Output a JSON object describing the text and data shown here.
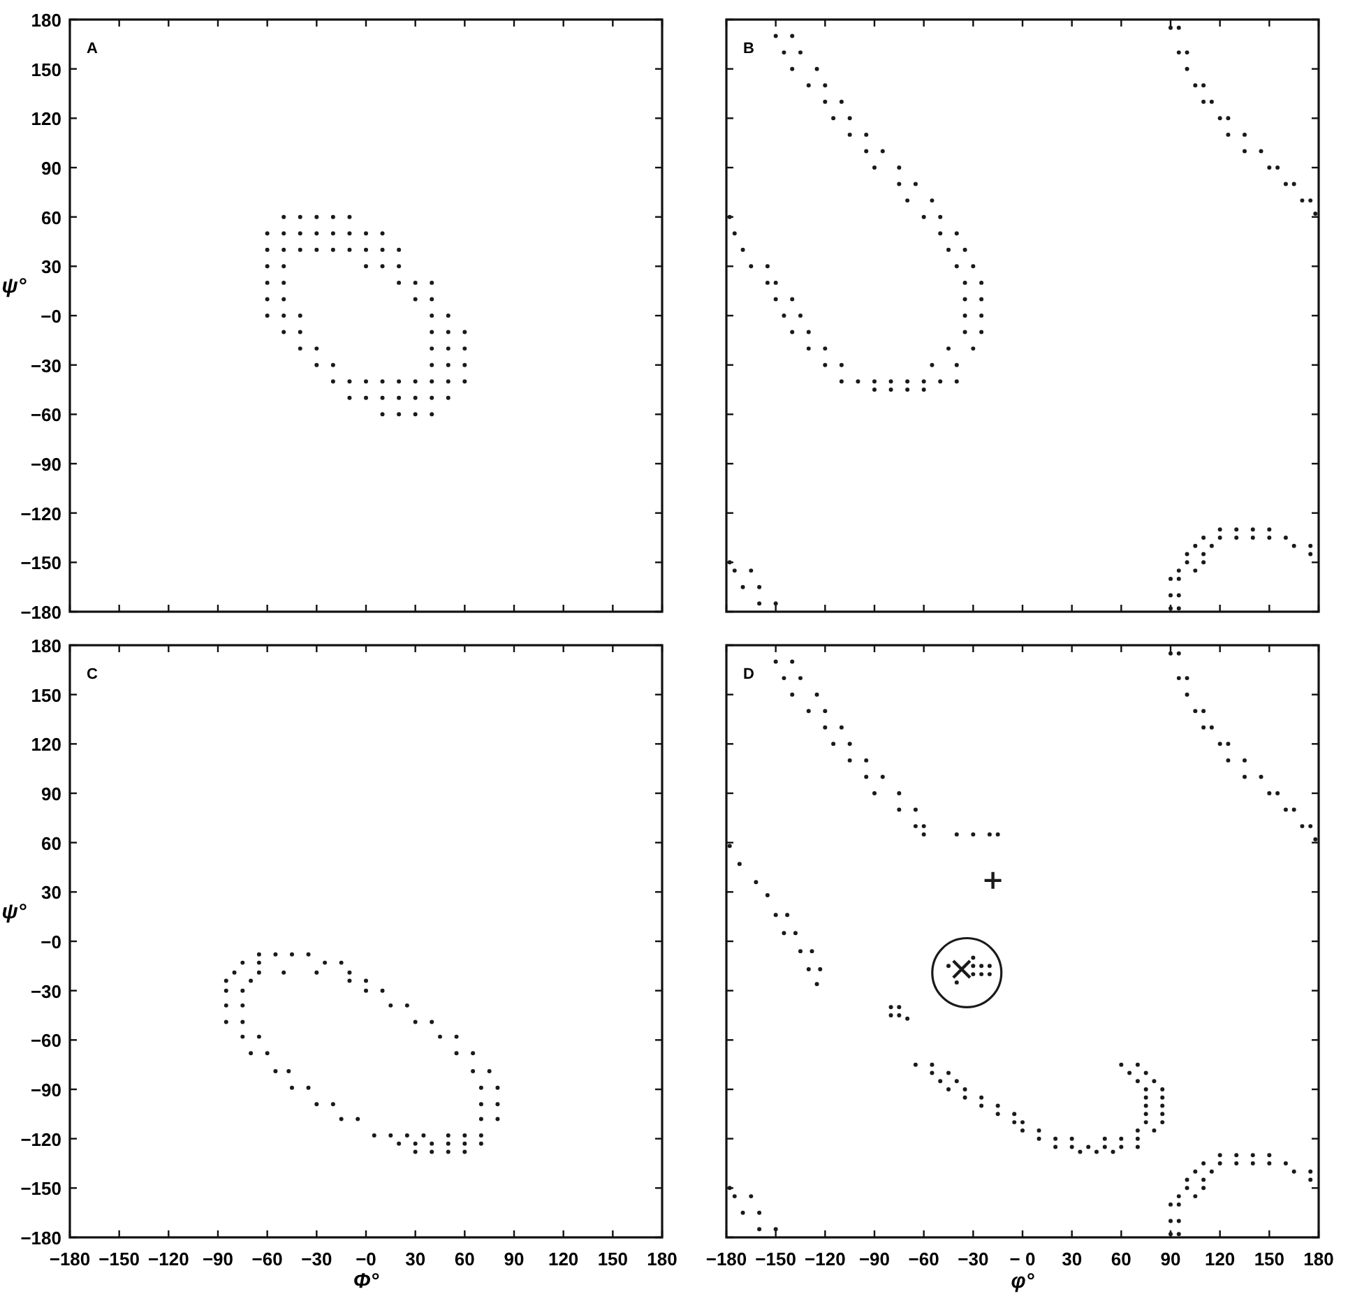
{
  "chart_data": [
    {
      "type": "scatter",
      "title": "A",
      "ylabel": "ψ°",
      "xlim": [
        -180,
        180
      ],
      "ylim": [
        -180,
        180
      ],
      "tick_labels": "y",
      "marker": "circle",
      "xticks": [
        -180,
        -150,
        -120,
        -90,
        -60,
        -30,
        0,
        30,
        60,
        90,
        120,
        150,
        180
      ],
      "yticks": [
        -180,
        -150,
        -120,
        -90,
        -60,
        -30,
        {
          "value": 0,
          "label": "−0"
        },
        30,
        60,
        90,
        120,
        150,
        180
      ],
      "series": [
        {
          "color": "#1a1a1a",
          "x": [
            -50,
            -40,
            -30,
            -20,
            -10,
            -60,
            -50,
            -40,
            -30,
            -20,
            -10,
            0,
            10,
            -60,
            -50,
            -40,
            -30,
            -20,
            -10,
            0,
            10,
            20,
            -60,
            -50,
            0,
            10,
            20,
            -60,
            -50,
            20,
            30,
            40,
            -60,
            -50,
            30,
            40,
            -60,
            -50,
            -40,
            40,
            50,
            -50,
            -40,
            40,
            50,
            60,
            -40,
            -30,
            40,
            50,
            60,
            -30,
            -20,
            40,
            50,
            60,
            -20,
            -10,
            0,
            10,
            20,
            30,
            40,
            50,
            60,
            -10,
            0,
            10,
            20,
            30,
            40,
            50,
            10,
            20,
            30,
            40
          ],
          "values": [
            60,
            60,
            60,
            60,
            60,
            50,
            50,
            50,
            50,
            50,
            50,
            50,
            50,
            40,
            40,
            40,
            40,
            40,
            40,
            40,
            40,
            40,
            30,
            30,
            30,
            30,
            30,
            20,
            20,
            20,
            20,
            20,
            10,
            10,
            10,
            10,
            0,
            0,
            0,
            0,
            0,
            -10,
            -10,
            -10,
            -10,
            -10,
            -20,
            -20,
            -20,
            -20,
            -20,
            -30,
            -30,
            -30,
            -30,
            -30,
            -40,
            -40,
            -40,
            -40,
            -40,
            -40,
            -40,
            -40,
            -40,
            -50,
            -50,
            -50,
            -50,
            -50,
            -50,
            -50,
            -60,
            -60,
            -60,
            -60
          ]
        }
      ]
    },
    {
      "type": "scatter",
      "title": "B",
      "xlim": [
        -180,
        180
      ],
      "ylim": [
        -180,
        180
      ],
      "tick_labels": false,
      "marker": "circle",
      "xticks": [
        -180,
        -150,
        -120,
        -90,
        -60,
        -30,
        0,
        30,
        60,
        90,
        120,
        150,
        180
      ],
      "yticks": [
        -180,
        -150,
        -120,
        -90,
        -60,
        -30,
        0,
        30,
        60,
        90,
        120,
        150,
        180
      ],
      "series": [
        {
          "color": "#1a1a1a",
          "x": [
            -150,
            -140,
            -145,
            -135,
            -140,
            -125,
            -130,
            -120,
            -120,
            -110,
            -115,
            -105,
            -105,
            -95,
            -95,
            -85,
            -90,
            -75,
            -75,
            -65,
            -70,
            -55,
            -60,
            -50,
            -50,
            -40,
            -45,
            -35,
            -40,
            -30,
            -35,
            -25,
            -35,
            -25,
            -35,
            -25,
            -35,
            -25,
            -45,
            -30,
            -55,
            -40,
            -120,
            -110,
            -110,
            -100,
            -90,
            -80,
            -70,
            -60,
            -50,
            -40,
            -90,
            -80,
            -70,
            -60,
            -178,
            -175,
            -170,
            -165,
            -155,
            -155,
            -150,
            -150,
            -140,
            -145,
            -135,
            -140,
            -130,
            -130,
            -120,
            90,
            95,
            95,
            100,
            100,
            105,
            110,
            110,
            115,
            120,
            125,
            125,
            135,
            135,
            145,
            150,
            155,
            160,
            165,
            170,
            175,
            178,
            120,
            130,
            140,
            150,
            110,
            120,
            130,
            140,
            150,
            160,
            105,
            115,
            165,
            175,
            100,
            110,
            175,
            100,
            110,
            95,
            105,
            90,
            95,
            90,
            95,
            90,
            95,
            -178,
            -175,
            -165,
            -170,
            -160,
            -160,
            -150
          ],
          "values": [
            170,
            170,
            160,
            160,
            150,
            150,
            140,
            140,
            130,
            130,
            120,
            120,
            110,
            110,
            100,
            100,
            90,
            90,
            80,
            80,
            70,
            70,
            60,
            60,
            50,
            50,
            40,
            40,
            30,
            30,
            20,
            20,
            10,
            10,
            0,
            0,
            -10,
            -10,
            -20,
            -20,
            -30,
            -30,
            -30,
            -30,
            -40,
            -40,
            -40,
            -40,
            -40,
            -40,
            -40,
            -40,
            -45,
            -45,
            -45,
            -45,
            60,
            50,
            40,
            30,
            30,
            20,
            20,
            10,
            10,
            0,
            0,
            -10,
            -10,
            -20,
            -20,
            175,
            175,
            160,
            160,
            150,
            140,
            140,
            130,
            130,
            120,
            120,
            110,
            110,
            100,
            100,
            90,
            90,
            80,
            80,
            70,
            70,
            62,
            -130,
            -130,
            -130,
            -130,
            -135,
            -135,
            -135,
            -135,
            -135,
            -135,
            -140,
            -140,
            -140,
            -140,
            -145,
            -145,
            -145,
            -150,
            -150,
            -155,
            -155,
            -160,
            -160,
            -170,
            -170,
            -178,
            -178,
            -150,
            -155,
            -155,
            -165,
            -165,
            -175,
            -175
          ]
        }
      ]
    },
    {
      "type": "scatter",
      "title": "C",
      "xlabel": "Φ°",
      "ylabel": "ψ°",
      "xlim": [
        -180,
        180
      ],
      "ylim": [
        -180,
        180
      ],
      "marker": "circle",
      "xticks": [
        -180,
        -150,
        -120,
        -90,
        -60,
        -30,
        {
          "value": 0,
          "label": "−0"
        },
        30,
        60,
        90,
        120,
        150,
        180
      ],
      "yticks": [
        -180,
        -150,
        -120,
        -90,
        -60,
        -30,
        {
          "value": 0,
          "label": "−0"
        },
        30,
        60,
        90,
        120,
        150,
        180
      ],
      "series": [
        {
          "color": "#1a1a1a",
          "x": [
            -65,
            -55,
            -45,
            -35,
            -75,
            -65,
            -25,
            -15,
            -80,
            -65,
            -50,
            -30,
            -10,
            -85,
            -70,
            -10,
            0,
            -85,
            -75,
            0,
            10,
            -85,
            -75,
            15,
            25,
            -85,
            -75,
            30,
            40,
            -75,
            -65,
            45,
            55,
            -70,
            -60,
            55,
            65,
            -55,
            -47,
            65,
            75,
            -45,
            -35,
            70,
            80,
            -30,
            -20,
            70,
            80,
            -15,
            -5,
            70,
            80,
            5,
            15,
            25,
            35,
            50,
            60,
            70,
            20,
            30,
            40,
            50,
            60,
            70,
            30,
            40,
            50,
            60
          ],
          "values": [
            -8,
            -8,
            -8,
            -8,
            -13,
            -13,
            -13,
            -13,
            -19,
            -19,
            -19,
            -19,
            -19,
            -24,
            -24,
            -24,
            -24,
            -30,
            -30,
            -30,
            -30,
            -39,
            -39,
            -39,
            -39,
            -49,
            -49,
            -49,
            -49,
            -58,
            -58,
            -58,
            -58,
            -68,
            -68,
            -68,
            -68,
            -79,
            -79,
            -79,
            -79,
            -89,
            -89,
            -89,
            -89,
            -99,
            -99,
            -99,
            -99,
            -108,
            -108,
            -108,
            -108,
            -118,
            -118,
            -118,
            -118,
            -118,
            -118,
            -118,
            -123,
            -123,
            -123,
            -123,
            -123,
            -123,
            -128,
            -128,
            -128,
            -128
          ]
        }
      ]
    },
    {
      "type": "scatter",
      "title": "D",
      "xlabel": "φ°",
      "xlim": [
        -180,
        180
      ],
      "ylim": [
        -180,
        180
      ],
      "tick_labels": "x",
      "marker": "circle",
      "xticks": [
        -180,
        -150,
        -120,
        -90,
        -60,
        -30,
        {
          "value": 0,
          "label": "− 0"
        },
        30,
        60,
        90,
        120,
        150,
        180
      ],
      "yticks": [
        -180,
        -150,
        -120,
        -90,
        -60,
        -30,
        0,
        30,
        60,
        90,
        120,
        150,
        180
      ],
      "series": [
        {
          "color": "#1a1a1a",
          "x": [
            -150,
            -140,
            -145,
            -135,
            -140,
            -125,
            -130,
            -120,
            -120,
            -110,
            -115,
            -105,
            -105,
            -95,
            -95,
            -85,
            -90,
            -75,
            -75,
            -65,
            -65,
            -60,
            -60,
            -40,
            -30,
            -20,
            -15,
            -178,
            -172,
            -162,
            -155,
            -150,
            -143,
            -145,
            -138,
            -135,
            -128,
            -130,
            -123,
            -125,
            -80,
            -75,
            -80,
            -75,
            -70,
            -45,
            -30,
            -30,
            -25,
            -20,
            -30,
            -25,
            -20,
            -40,
            -65,
            -55,
            60,
            70,
            -55,
            -45,
            65,
            75,
            -50,
            -40,
            70,
            80,
            -45,
            -35,
            75,
            85,
            -35,
            -25,
            75,
            85,
            -25,
            -15,
            75,
            85,
            -15,
            -5,
            75,
            85,
            -5,
            0,
            75,
            85,
            0,
            10,
            70,
            80,
            10,
            20,
            30,
            50,
            60,
            70,
            20,
            30,
            40,
            50,
            60,
            70,
            35,
            45,
            55,
            90,
            95,
            95,
            100,
            100,
            105,
            110,
            110,
            115,
            120,
            125,
            125,
            135,
            135,
            145,
            150,
            155,
            160,
            165,
            170,
            175,
            178,
            120,
            130,
            140,
            150,
            110,
            120,
            130,
            140,
            150,
            160,
            105,
            115,
            165,
            175,
            100,
            110,
            175,
            100,
            110,
            95,
            105,
            90,
            95,
            90,
            95,
            90,
            95,
            -178,
            -175,
            -165,
            -170,
            -160,
            -160,
            -150
          ],
          "values": [
            170,
            170,
            160,
            160,
            150,
            150,
            140,
            140,
            130,
            130,
            120,
            120,
            110,
            110,
            100,
            100,
            90,
            90,
            80,
            80,
            70,
            70,
            65,
            65,
            65,
            65,
            65,
            58,
            47,
            36,
            28,
            16,
            16,
            5,
            5,
            -6,
            -6,
            -17,
            -17,
            -26,
            -40,
            -40,
            -45,
            -45,
            -47,
            -15,
            -10,
            -15,
            -15,
            -15,
            -20,
            -20,
            -20,
            -25,
            -75,
            -75,
            -75,
            -75,
            -80,
            -80,
            -80,
            -80,
            -85,
            -85,
            -85,
            -85,
            -90,
            -90,
            -90,
            -90,
            -95,
            -95,
            -95,
            -95,
            -100,
            -100,
            -100,
            -100,
            -105,
            -105,
            -105,
            -105,
            -110,
            -110,
            -110,
            -110,
            -115,
            -115,
            -115,
            -115,
            -120,
            -120,
            -120,
            -120,
            -120,
            -120,
            -125,
            -125,
            -125,
            -125,
            -125,
            -125,
            -128,
            -128,
            -128,
            175,
            175,
            160,
            160,
            150,
            140,
            140,
            130,
            130,
            120,
            120,
            110,
            110,
            100,
            100,
            90,
            90,
            80,
            80,
            70,
            70,
            62,
            -130,
            -130,
            -130,
            -130,
            -135,
            -135,
            -135,
            -135,
            -135,
            -135,
            -140,
            -140,
            -140,
            -140,
            -145,
            -145,
            -145,
            -150,
            -150,
            -155,
            -155,
            -160,
            -160,
            -170,
            -170,
            -178,
            -178,
            -150,
            -155,
            -155,
            -165,
            -165,
            -175,
            -175
          ]
        },
        {
          "color": "#1a1a1a",
          "marker": "cross",
          "x": [
            -18
          ],
          "values": [
            37
          ]
        },
        {
          "color": "#1a1a1a",
          "marker": "x",
          "x": [
            -37
          ],
          "values": [
            -17
          ]
        }
      ]
    }
  ]
}
